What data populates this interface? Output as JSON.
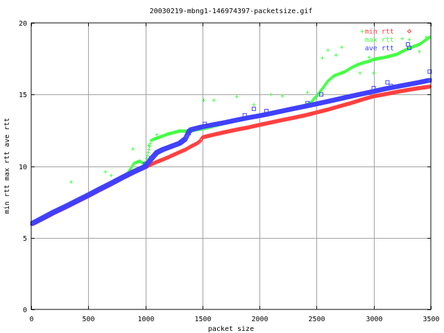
{
  "chart_data": {
    "type": "scatter",
    "title": "20030219-mbng1-146974397-packetsize.gif",
    "xlabel": "packet size",
    "ylabel": "min rtt max rtt ave rtt",
    "xlim": [
      0,
      3500
    ],
    "ylim": [
      0,
      20
    ],
    "x_ticks": [
      0,
      500,
      1000,
      1500,
      2000,
      2500,
      3000,
      3500
    ],
    "y_ticks": [
      0,
      5,
      10,
      15,
      20
    ],
    "x_tick_labels": [
      "0",
      "500",
      "1000",
      "1500",
      "2000",
      "2500",
      "3000",
      "3500"
    ],
    "y_tick_labels": [
      "0",
      "5",
      "10",
      "15",
      "20"
    ],
    "grid": true,
    "legend_position": "top-right",
    "series": [
      {
        "name": "min rtt",
        "color": "#ff4040",
        "marker": "diamond",
        "points": [
          [
            10,
            5.95
          ],
          [
            100,
            6.3
          ],
          [
            200,
            6.72
          ],
          [
            300,
            7.1
          ],
          [
            400,
            7.5
          ],
          [
            500,
            7.9
          ],
          [
            600,
            8.32
          ],
          [
            700,
            8.72
          ],
          [
            800,
            9.15
          ],
          [
            900,
            9.55
          ],
          [
            1000,
            9.92
          ],
          [
            1050,
            10.12
          ],
          [
            1100,
            10.3
          ],
          [
            1150,
            10.45
          ],
          [
            1200,
            10.62
          ],
          [
            1250,
            10.8
          ],
          [
            1300,
            10.98
          ],
          [
            1350,
            11.15
          ],
          [
            1400,
            11.38
          ],
          [
            1450,
            11.58
          ],
          [
            1480,
            11.75
          ],
          [
            1500,
            12.0
          ],
          [
            1520,
            12.05
          ],
          [
            1600,
            12.2
          ],
          [
            1700,
            12.38
          ],
          [
            1800,
            12.55
          ],
          [
            1900,
            12.7
          ],
          [
            2000,
            12.88
          ],
          [
            2100,
            13.05
          ],
          [
            2200,
            13.22
          ],
          [
            2300,
            13.38
          ],
          [
            2400,
            13.55
          ],
          [
            2500,
            13.75
          ],
          [
            2600,
            13.95
          ],
          [
            2700,
            14.18
          ],
          [
            2800,
            14.4
          ],
          [
            2900,
            14.65
          ],
          [
            3000,
            14.88
          ],
          [
            3100,
            15.02
          ],
          [
            3200,
            15.18
          ],
          [
            3300,
            15.32
          ],
          [
            3400,
            15.45
          ],
          [
            3490,
            15.55
          ]
        ],
        "outliers": [
          [
            1250,
            10.8
          ],
          [
            3350,
            15.4
          ]
        ]
      },
      {
        "name": "max rtt",
        "color": "#40ff40",
        "marker": "plus",
        "points": [
          [
            10,
            6.0
          ],
          [
            100,
            6.4
          ],
          [
            200,
            6.82
          ],
          [
            300,
            7.2
          ],
          [
            400,
            7.62
          ],
          [
            500,
            8.0
          ],
          [
            600,
            8.42
          ],
          [
            700,
            8.82
          ],
          [
            800,
            9.25
          ],
          [
            850,
            9.55
          ],
          [
            900,
            10.2
          ],
          [
            950,
            10.35
          ],
          [
            1000,
            10.1
          ],
          [
            1050,
            11.8
          ],
          [
            1100,
            11.95
          ],
          [
            1200,
            12.25
          ],
          [
            1300,
            12.45
          ],
          [
            1400,
            12.45
          ],
          [
            1450,
            12.55
          ],
          [
            1500,
            12.6
          ],
          [
            1600,
            12.8
          ],
          [
            1700,
            13.0
          ],
          [
            1800,
            13.2
          ],
          [
            1900,
            13.38
          ],
          [
            2000,
            13.55
          ],
          [
            2100,
            13.72
          ],
          [
            2200,
            13.88
          ],
          [
            2300,
            14.05
          ],
          [
            2400,
            14.25
          ],
          [
            2450,
            14.45
          ],
          [
            2500,
            14.9
          ],
          [
            2550,
            15.4
          ],
          [
            2600,
            15.95
          ],
          [
            2650,
            16.3
          ],
          [
            2700,
            16.45
          ],
          [
            2750,
            16.6
          ],
          [
            2800,
            16.85
          ],
          [
            2850,
            17.05
          ],
          [
            2900,
            17.2
          ],
          [
            2950,
            17.3
          ],
          [
            3000,
            17.45
          ],
          [
            3100,
            17.6
          ],
          [
            3200,
            17.8
          ],
          [
            3300,
            18.2
          ],
          [
            3400,
            18.5
          ],
          [
            3490,
            19.0
          ]
        ],
        "outliers": [
          [
            350,
            8.9
          ],
          [
            650,
            9.6
          ],
          [
            700,
            9.35
          ],
          [
            890,
            11.2
          ],
          [
            1030,
            11.45
          ],
          [
            1100,
            12.2
          ],
          [
            1510,
            14.6
          ],
          [
            1600,
            14.6
          ],
          [
            1800,
            14.85
          ],
          [
            1950,
            14.3
          ],
          [
            2100,
            15.0
          ],
          [
            2200,
            14.9
          ],
          [
            2420,
            15.15
          ],
          [
            2550,
            17.55
          ],
          [
            2600,
            18.1
          ],
          [
            2670,
            17.75
          ],
          [
            2720,
            18.3
          ],
          [
            2880,
            16.5
          ],
          [
            2900,
            19.4
          ],
          [
            2960,
            17.6
          ],
          [
            3000,
            16.5
          ],
          [
            3020,
            17.5
          ],
          [
            3250,
            18.9
          ],
          [
            3400,
            18.0
          ],
          [
            3460,
            19.0
          ]
        ]
      },
      {
        "name": "ave rtt",
        "color": "#4040ff",
        "marker": "square",
        "points": [
          [
            10,
            6.0
          ],
          [
            100,
            6.38
          ],
          [
            200,
            6.8
          ],
          [
            300,
            7.18
          ],
          [
            400,
            7.58
          ],
          [
            500,
            7.98
          ],
          [
            600,
            8.4
          ],
          [
            700,
            8.8
          ],
          [
            800,
            9.22
          ],
          [
            900,
            9.62
          ],
          [
            1000,
            9.98
          ],
          [
            1050,
            10.5
          ],
          [
            1100,
            10.95
          ],
          [
            1150,
            11.15
          ],
          [
            1200,
            11.3
          ],
          [
            1250,
            11.45
          ],
          [
            1300,
            11.6
          ],
          [
            1350,
            11.9
          ],
          [
            1380,
            12.4
          ],
          [
            1400,
            12.55
          ],
          [
            1500,
            12.75
          ],
          [
            1600,
            12.9
          ],
          [
            1700,
            13.05
          ],
          [
            1800,
            13.22
          ],
          [
            1900,
            13.38
          ],
          [
            2000,
            13.52
          ],
          [
            2100,
            13.68
          ],
          [
            2200,
            13.85
          ],
          [
            2300,
            14.02
          ],
          [
            2400,
            14.18
          ],
          [
            2500,
            14.35
          ],
          [
            2600,
            14.52
          ],
          [
            2700,
            14.7
          ],
          [
            2800,
            14.88
          ],
          [
            2900,
            15.05
          ],
          [
            3000,
            15.22
          ],
          [
            3100,
            15.4
          ],
          [
            3200,
            15.55
          ],
          [
            3300,
            15.7
          ],
          [
            3400,
            15.85
          ],
          [
            3490,
            16.0
          ]
        ],
        "outliers": [
          [
            1000,
            10.15
          ],
          [
            1050,
            10.55
          ],
          [
            1380,
            12.3
          ],
          [
            1520,
            12.95
          ],
          [
            1870,
            13.55
          ],
          [
            1950,
            14.0
          ],
          [
            2060,
            13.85
          ],
          [
            2420,
            14.4
          ],
          [
            2540,
            15.0
          ],
          [
            3000,
            15.45
          ],
          [
            3120,
            15.85
          ],
          [
            3150,
            15.6
          ],
          [
            3300,
            18.5
          ],
          [
            3490,
            16.6
          ]
        ]
      }
    ]
  }
}
